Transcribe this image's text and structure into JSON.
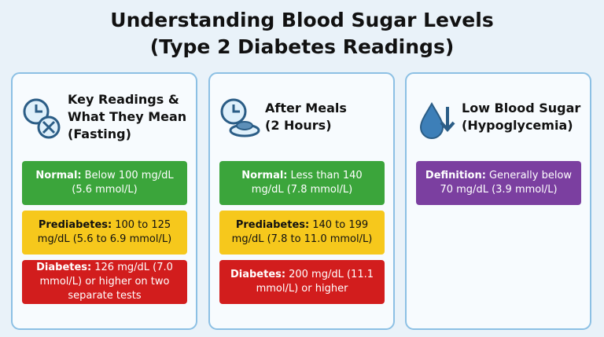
{
  "header": {
    "title": [
      "Understanding Blood Sugar Levels",
      "(Type 2 Diabetes Readings)"
    ]
  },
  "panels": [
    {
      "heading": [
        "Key Readings &",
        "What They Mean",
        "(Fasting)"
      ],
      "items": [
        {
          "label": "Normal:",
          "text": "Below 100 mg/dL (5.6 mmol/L)",
          "color": "#3ba53b"
        },
        {
          "label": "Prediabetes:",
          "text": "100 to 125 mg/dL (5.6 to 6.9 mmol/L)",
          "color": "#f6c81c"
        },
        {
          "label": "Diabetes:",
          "text": "126 mg/dL (7.0 mmol/L) or higher on two separate tests",
          "color": "#d21d1d"
        }
      ]
    },
    {
      "heading": [
        "After Meals",
        "(2 Hours)"
      ],
      "items": [
        {
          "label": "Normal:",
          "text": "Less than 140 mg/dL (7.8 mmol/L)",
          "color": "#3ba53b"
        },
        {
          "label": "Prediabetes:",
          "text": "140 to 199 mg/dL (7.8 to 11.0 mmol/L)",
          "color": "#f6c81c"
        },
        {
          "label": "Diabetes:",
          "text": "200 mg/dL (11.1 mmol/L) or higher",
          "color": "#d21d1d"
        }
      ]
    },
    {
      "heading": [
        "Low Blood Sugar",
        "(Hypoglycemia)"
      ],
      "items": [
        {
          "label": "Definition:",
          "text": "Generally below 70 mg/dL (3.9 mmol/L)",
          "color": "#7b3fa0"
        }
      ]
    }
  ]
}
